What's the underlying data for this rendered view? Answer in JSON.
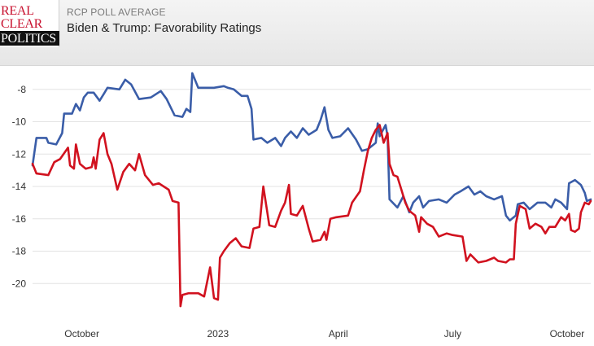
{
  "header": {
    "logo": {
      "line1": "REAL",
      "line2": "CLEAR",
      "line3": "POLITICS"
    },
    "eyebrow": "RCP POLL AVERAGE",
    "title": "Biden & Trump: Favorability Ratings"
  },
  "colors": {
    "biden": "#3a5da8",
    "trump": "#d1121f",
    "grid": "#e3e3e3",
    "axis_text": "#333333"
  },
  "chart_data": {
    "type": "line",
    "x_unit": "month",
    "x_range": [
      0,
      14.15
    ],
    "ylim": [
      -22.2,
      -6.5
    ],
    "y_ticks": [
      -8,
      -10,
      -12,
      -14,
      -16,
      -18,
      -20
    ],
    "x_ticks": [
      {
        "label": "October",
        "x": 1.25
      },
      {
        "label": "2023",
        "x": 4.7
      },
      {
        "label": "April",
        "x": 7.75
      },
      {
        "label": "July",
        "x": 10.65
      },
      {
        "label": "October",
        "x": 13.55
      }
    ],
    "grid": true,
    "legend": "none",
    "series": [
      {
        "points": [
          [
            0.0,
            -12.7
          ],
          [
            0.1,
            -11.0
          ],
          [
            0.35,
            -11.0
          ],
          [
            0.4,
            -11.3
          ],
          [
            0.6,
            -11.4
          ],
          [
            0.75,
            -10.7
          ],
          [
            0.8,
            -9.5
          ],
          [
            1.0,
            -9.5
          ],
          [
            1.1,
            -8.9
          ],
          [
            1.2,
            -9.3
          ],
          [
            1.3,
            -8.5
          ],
          [
            1.4,
            -8.2
          ],
          [
            1.55,
            -8.2
          ],
          [
            1.7,
            -8.7
          ],
          [
            1.8,
            -8.3
          ],
          [
            1.9,
            -7.9
          ],
          [
            2.2,
            -8.0
          ],
          [
            2.35,
            -7.4
          ],
          [
            2.5,
            -7.7
          ],
          [
            2.7,
            -8.6
          ],
          [
            3.0,
            -8.5
          ],
          [
            3.25,
            -8.1
          ],
          [
            3.4,
            -8.6
          ],
          [
            3.6,
            -9.6
          ],
          [
            3.8,
            -9.7
          ],
          [
            3.9,
            -9.2
          ],
          [
            4.0,
            -9.4
          ],
          [
            4.05,
            -7.0
          ],
          [
            4.2,
            -7.9
          ],
          [
            4.6,
            -7.9
          ],
          [
            4.85,
            -7.8
          ],
          [
            4.95,
            -7.9
          ],
          [
            5.1,
            -8.0
          ],
          [
            5.3,
            -8.4
          ],
          [
            5.45,
            -8.4
          ],
          [
            5.55,
            -9.2
          ],
          [
            5.6,
            -11.1
          ],
          [
            5.8,
            -11.0
          ],
          [
            5.95,
            -11.3
          ],
          [
            6.15,
            -11.0
          ],
          [
            6.3,
            -11.5
          ],
          [
            6.4,
            -11.0
          ],
          [
            6.55,
            -10.6
          ],
          [
            6.7,
            -11.0
          ],
          [
            6.85,
            -10.4
          ],
          [
            7.0,
            -10.8
          ],
          [
            7.2,
            -10.5
          ],
          [
            7.3,
            -9.9
          ],
          [
            7.4,
            -9.1
          ],
          [
            7.5,
            -10.5
          ],
          [
            7.6,
            -11.0
          ],
          [
            7.8,
            -10.9
          ],
          [
            8.0,
            -10.4
          ],
          [
            8.2,
            -11.1
          ],
          [
            8.35,
            -11.8
          ],
          [
            8.5,
            -11.7
          ],
          [
            8.7,
            -11.3
          ],
          [
            8.75,
            -10.1
          ],
          [
            8.8,
            -10.9
          ],
          [
            8.95,
            -10.2
          ],
          [
            9.0,
            -10.9
          ],
          [
            9.05,
            -14.8
          ],
          [
            9.25,
            -15.3
          ],
          [
            9.4,
            -14.6
          ],
          [
            9.55,
            -15.6
          ],
          [
            9.65,
            -15.0
          ],
          [
            9.8,
            -14.6
          ],
          [
            9.9,
            -15.3
          ],
          [
            10.05,
            -14.9
          ],
          [
            10.3,
            -14.8
          ],
          [
            10.5,
            -15.0
          ],
          [
            10.7,
            -14.5
          ],
          [
            10.85,
            -14.3
          ],
          [
            11.05,
            -14.0
          ],
          [
            11.2,
            -14.5
          ],
          [
            11.35,
            -14.3
          ],
          [
            11.5,
            -14.6
          ],
          [
            11.7,
            -14.8
          ],
          [
            11.9,
            -14.6
          ],
          [
            12.0,
            -15.8
          ],
          [
            12.1,
            -16.1
          ],
          [
            12.25,
            -15.8
          ],
          [
            12.3,
            -15.1
          ],
          [
            12.45,
            -15.0
          ],
          [
            12.6,
            -15.4
          ],
          [
            12.8,
            -15.0
          ],
          [
            13.0,
            -15.0
          ],
          [
            13.15,
            -15.3
          ],
          [
            13.25,
            -14.8
          ],
          [
            13.4,
            -15.0
          ],
          [
            13.55,
            -15.4
          ],
          [
            13.6,
            -13.8
          ],
          [
            13.75,
            -13.6
          ],
          [
            13.9,
            -13.9
          ],
          [
            14.0,
            -14.4
          ],
          [
            14.05,
            -14.9
          ],
          [
            14.15,
            -14.8
          ]
        ]
      },
      {
        "points": [
          [
            0.0,
            -12.6
          ],
          [
            0.1,
            -13.2
          ],
          [
            0.4,
            -13.3
          ],
          [
            0.55,
            -12.5
          ],
          [
            0.7,
            -12.3
          ],
          [
            0.9,
            -11.6
          ],
          [
            0.95,
            -12.7
          ],
          [
            1.05,
            -12.9
          ],
          [
            1.1,
            -11.4
          ],
          [
            1.2,
            -12.6
          ],
          [
            1.35,
            -12.9
          ],
          [
            1.5,
            -12.8
          ],
          [
            1.55,
            -12.2
          ],
          [
            1.6,
            -12.9
          ],
          [
            1.7,
            -11.1
          ],
          [
            1.8,
            -10.7
          ],
          [
            1.9,
            -12.0
          ],
          [
            2.0,
            -12.6
          ],
          [
            2.15,
            -14.2
          ],
          [
            2.3,
            -13.1
          ],
          [
            2.45,
            -12.6
          ],
          [
            2.6,
            -13.0
          ],
          [
            2.7,
            -12.0
          ],
          [
            2.85,
            -13.3
          ],
          [
            3.05,
            -13.9
          ],
          [
            3.2,
            -13.8
          ],
          [
            3.45,
            -14.2
          ],
          [
            3.55,
            -14.9
          ],
          [
            3.7,
            -15.0
          ],
          [
            3.75,
            -21.4
          ],
          [
            3.8,
            -20.7
          ],
          [
            3.95,
            -20.6
          ],
          [
            4.2,
            -20.6
          ],
          [
            4.35,
            -20.8
          ],
          [
            4.5,
            -19.0
          ],
          [
            4.6,
            -20.9
          ],
          [
            4.7,
            -21.0
          ],
          [
            4.75,
            -18.4
          ],
          [
            4.85,
            -18.0
          ],
          [
            5.0,
            -17.5
          ],
          [
            5.15,
            -17.2
          ],
          [
            5.3,
            -17.7
          ],
          [
            5.5,
            -17.8
          ],
          [
            5.6,
            -16.6
          ],
          [
            5.75,
            -16.5
          ],
          [
            5.85,
            -14.0
          ],
          [
            5.95,
            -15.6
          ],
          [
            6.0,
            -16.4
          ],
          [
            6.15,
            -16.5
          ],
          [
            6.3,
            -15.5
          ],
          [
            6.4,
            -15.0
          ],
          [
            6.5,
            -13.9
          ],
          [
            6.55,
            -15.7
          ],
          [
            6.7,
            -15.8
          ],
          [
            6.85,
            -15.2
          ],
          [
            7.0,
            -16.6
          ],
          [
            7.1,
            -17.4
          ],
          [
            7.3,
            -17.3
          ],
          [
            7.4,
            -16.8
          ],
          [
            7.45,
            -17.3
          ],
          [
            7.55,
            -16.0
          ],
          [
            7.7,
            -15.9
          ],
          [
            8.0,
            -15.8
          ],
          [
            8.1,
            -15.0
          ],
          [
            8.3,
            -14.3
          ],
          [
            8.4,
            -13.0
          ],
          [
            8.5,
            -11.8
          ],
          [
            8.6,
            -11.0
          ],
          [
            8.7,
            -10.5
          ],
          [
            8.8,
            -10.2
          ],
          [
            8.9,
            -11.3
          ],
          [
            9.0,
            -10.7
          ],
          [
            9.05,
            -12.6
          ],
          [
            9.15,
            -13.3
          ],
          [
            9.25,
            -13.4
          ],
          [
            9.35,
            -14.2
          ],
          [
            9.45,
            -15.0
          ],
          [
            9.55,
            -15.5
          ],
          [
            9.7,
            -15.8
          ],
          [
            9.8,
            -16.8
          ],
          [
            9.85,
            -15.9
          ],
          [
            10.0,
            -16.3
          ],
          [
            10.15,
            -16.5
          ],
          [
            10.3,
            -17.1
          ],
          [
            10.5,
            -16.9
          ],
          [
            10.65,
            -17.0
          ],
          [
            10.9,
            -17.1
          ],
          [
            11.0,
            -18.6
          ],
          [
            11.1,
            -18.2
          ],
          [
            11.3,
            -18.7
          ],
          [
            11.5,
            -18.6
          ],
          [
            11.7,
            -18.4
          ],
          [
            11.8,
            -18.6
          ],
          [
            12.0,
            -18.7
          ],
          [
            12.1,
            -18.5
          ],
          [
            12.2,
            -18.5
          ],
          [
            12.25,
            -16.3
          ],
          [
            12.35,
            -15.2
          ],
          [
            12.5,
            -15.4
          ],
          [
            12.6,
            -16.6
          ],
          [
            12.75,
            -16.3
          ],
          [
            12.9,
            -16.5
          ],
          [
            13.0,
            -16.9
          ],
          [
            13.1,
            -16.5
          ],
          [
            13.25,
            -16.5
          ],
          [
            13.35,
            -16.1
          ],
          [
            13.4,
            -15.9
          ],
          [
            13.5,
            -16.1
          ],
          [
            13.6,
            -15.7
          ],
          [
            13.65,
            -16.7
          ],
          [
            13.75,
            -16.8
          ],
          [
            13.85,
            -16.6
          ],
          [
            13.9,
            -15.6
          ],
          [
            14.0,
            -15.0
          ],
          [
            14.1,
            -15.1
          ],
          [
            14.15,
            -14.9
          ]
        ]
      }
    ]
  }
}
